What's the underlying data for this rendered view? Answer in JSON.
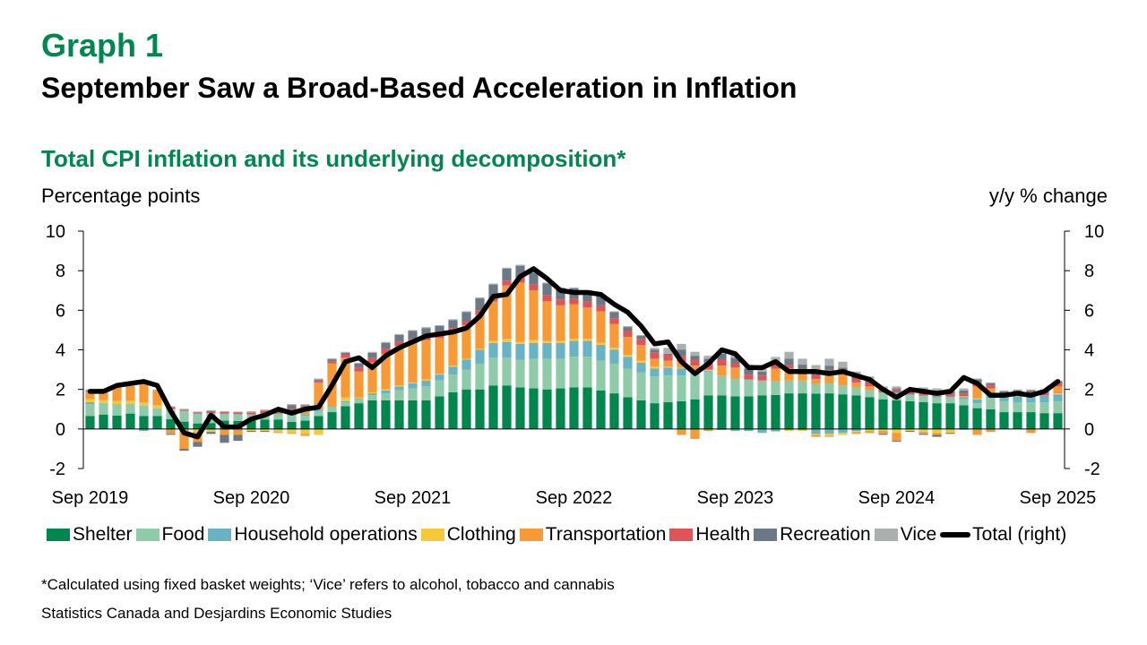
{
  "header": {
    "graph_number": "Graph 1",
    "title": "September Saw a Broad-Based Acceleration in Inflation",
    "subtitle": "Total CPI inflation and its underlying decomposition*",
    "left_axis_label": "Percentage points",
    "right_axis_label": "y/y % change"
  },
  "footer": {
    "note": "*Calculated using fixed basket weights; ‘Vice’ refers to alcohol, tobacco and cannabis",
    "source": "Statistics Canada and Desjardins Economic Studies"
  },
  "chart_data": {
    "type": "bar",
    "stacked": true,
    "title": "Total CPI inflation and its underlying decomposition*",
    "ylabel": "Percentage points",
    "y2label": "y/y % change",
    "ylim": [
      -2,
      10
    ],
    "y2lim": [
      -2,
      10
    ],
    "yticks": [
      -2,
      0,
      2,
      4,
      6,
      8,
      10
    ],
    "xtick_labels": [
      "Sep 2019",
      "Sep 2020",
      "Sep 2021",
      "Sep 2022",
      "Sep 2023",
      "Sep 2024",
      "Sep 2025"
    ],
    "xtick_indices": [
      0,
      12,
      24,
      36,
      48,
      60,
      72
    ],
    "legend_position": "bottom",
    "grid": false,
    "x_start": "Sep 2019",
    "x_end": "Sep 2025",
    "frequency": "monthly",
    "colors": {
      "Shelter": "#00874E",
      "Food": "#8FCBA9",
      "Household operations": "#69B3C6",
      "Clothing": "#F5C93A",
      "Transportation": "#F79A35",
      "Health": "#E05457",
      "Recreation": "#6B7885",
      "Vice": "#A9B0AE",
      "Total (right)": "#000000"
    },
    "series": [
      {
        "name": "Shelter",
        "values": [
          0.65,
          0.73,
          0.68,
          0.78,
          0.65,
          0.65,
          0.5,
          0.37,
          0.28,
          0.3,
          0.42,
          0.4,
          0.42,
          0.48,
          0.48,
          0.36,
          0.42,
          0.65,
          0.85,
          1.15,
          1.3,
          1.45,
          1.45,
          1.45,
          1.45,
          1.45,
          1.65,
          1.85,
          2.0,
          2.0,
          2.2,
          2.2,
          2.1,
          2.05,
          2.0,
          2.05,
          2.1,
          2.1,
          1.95,
          1.8,
          1.6,
          1.45,
          1.3,
          1.35,
          1.4,
          1.5,
          1.7,
          1.7,
          1.65,
          1.65,
          1.7,
          1.72,
          1.8,
          1.8,
          1.78,
          1.8,
          1.75,
          1.7,
          1.6,
          1.5,
          1.45,
          1.4,
          1.35,
          1.3,
          1.3,
          1.2,
          1.05,
          1.0,
          0.85,
          0.85,
          0.85,
          0.8,
          0.8
        ]
      },
      {
        "name": "Food",
        "values": [
          0.6,
          0.58,
          0.58,
          0.5,
          0.55,
          0.4,
          0.45,
          0.55,
          0.5,
          0.5,
          0.35,
          0.35,
          0.32,
          0.3,
          0.3,
          0.3,
          0.25,
          0.25,
          0.25,
          0.2,
          0.2,
          0.25,
          0.35,
          0.5,
          0.6,
          0.7,
          0.8,
          0.9,
          1.0,
          1.3,
          1.4,
          1.4,
          1.4,
          1.5,
          1.55,
          1.5,
          1.55,
          1.55,
          1.5,
          1.5,
          1.45,
          1.4,
          1.35,
          1.35,
          1.3,
          1.25,
          1.2,
          1.0,
          0.9,
          0.85,
          0.75,
          0.72,
          0.65,
          0.65,
          0.5,
          0.5,
          0.45,
          0.4,
          0.35,
          0.35,
          0.35,
          0.3,
          0.3,
          0.3,
          0.3,
          0.3,
          0.25,
          0.55,
          0.55,
          0.5,
          0.5,
          0.55,
          0.6
        ]
      },
      {
        "name": "Household operations",
        "values": [
          0.1,
          0.0,
          0.0,
          0.0,
          0.0,
          0.0,
          0.0,
          0.0,
          0.0,
          0.0,
          0.0,
          0.0,
          0.0,
          0.0,
          0.0,
          0.2,
          0.08,
          0.05,
          0.02,
          0.05,
          0.05,
          0.1,
          0.15,
          0.2,
          0.25,
          0.3,
          0.3,
          0.4,
          0.5,
          0.7,
          0.75,
          0.8,
          0.8,
          0.8,
          0.8,
          0.8,
          0.8,
          0.8,
          0.8,
          0.7,
          0.6,
          0.5,
          0.4,
          0.4,
          0.35,
          0.2,
          0.05,
          0.0,
          0.0,
          0.0,
          0.0,
          0.0,
          0.0,
          0.0,
          0.0,
          0.0,
          0.0,
          0.0,
          0.0,
          0.0,
          0.05,
          0.05,
          0.05,
          0.05,
          0.05,
          0.1,
          0.2,
          0.3,
          0.3,
          0.3,
          0.3,
          0.35,
          0.35
        ]
      },
      {
        "name": "Clothing",
        "values": [
          0.15,
          0.15,
          0.15,
          0.15,
          0.15,
          0.15,
          0.05,
          0.0,
          0.0,
          0.0,
          0.0,
          0.0,
          0.0,
          0.0,
          0.0,
          0.0,
          0.0,
          0.0,
          0.0,
          0.2,
          0.05,
          0.05,
          0.05,
          0.05,
          0.05,
          0.05,
          0.05,
          0.05,
          0.05,
          0.05,
          0.1,
          0.15,
          0.1,
          0.15,
          0.1,
          0.1,
          0.1,
          0.1,
          0.1,
          0.1,
          0.1,
          0.1,
          0.1,
          0.05,
          0.05,
          0.05,
          0.05,
          0.0,
          0.0,
          0.0,
          0.0,
          0.0,
          0.0,
          0.0,
          0.0,
          0.0,
          0.0,
          0.0,
          0.0,
          0.0,
          0.0,
          0.0,
          0.0,
          0.0,
          0.0,
          0.05,
          0.05,
          0.0,
          0.0,
          0.05,
          0.05,
          0.0,
          0.05
        ]
      },
      {
        "name": "Transportation",
        "values": [
          0.4,
          0.45,
          0.7,
          0.75,
          1.0,
          0.75,
          0.0,
          0.0,
          0.0,
          0.0,
          0.0,
          0.0,
          0.0,
          0.0,
          0.0,
          0.05,
          0.3,
          1.4,
          2.2,
          2.0,
          1.3,
          1.5,
          1.8,
          2.0,
          2.0,
          2.0,
          1.8,
          1.7,
          1.7,
          1.7,
          2.0,
          2.7,
          3.0,
          2.5,
          2.0,
          1.8,
          1.75,
          1.6,
          1.6,
          1.2,
          0.9,
          0.8,
          0.4,
          0.3,
          0.3,
          0.2,
          0.0,
          0.5,
          0.55,
          0.0,
          0.0,
          0.6,
          0.6,
          0.3,
          0.25,
          0.5,
          0.6,
          0.25,
          0.2,
          0.0,
          0.0,
          0.0,
          0.0,
          0.0,
          0.0,
          0.0,
          0.6,
          0.2,
          0.0,
          0.05,
          0.05,
          0.0,
          0.35
        ]
      },
      {
        "name": "Health",
        "values": [
          0.0,
          0.0,
          0.0,
          0.0,
          0.0,
          0.0,
          0.1,
          0.05,
          0.05,
          0.1,
          0.08,
          0.08,
          0.1,
          0.15,
          0.1,
          0.1,
          0.1,
          0.1,
          0.1,
          0.15,
          0.2,
          0.25,
          0.25,
          0.2,
          0.2,
          0.2,
          0.2,
          0.2,
          0.2,
          0.25,
          0.25,
          0.25,
          0.25,
          0.3,
          0.3,
          0.3,
          0.3,
          0.3,
          0.3,
          0.3,
          0.3,
          0.3,
          0.3,
          0.3,
          0.3,
          0.3,
          0.25,
          0.3,
          0.2,
          0.25,
          0.25,
          0.25,
          0.2,
          0.2,
          0.2,
          0.2,
          0.2,
          0.2,
          0.2,
          0.15,
          0.15,
          0.1,
          0.2,
          0.2,
          0.15,
          0.15,
          0.2,
          0.15,
          0.1,
          0.1,
          0.1,
          0.1,
          0.15
        ]
      },
      {
        "name": "Recreation",
        "values": [
          0.05,
          0.0,
          0.0,
          0.0,
          0.0,
          0.0,
          0.0,
          0.0,
          0.0,
          0.0,
          0.0,
          0.0,
          0.0,
          0.0,
          0.1,
          0.2,
          0.05,
          0.05,
          0.1,
          0.1,
          0.2,
          0.25,
          0.3,
          0.35,
          0.4,
          0.4,
          0.4,
          0.4,
          0.45,
          0.6,
          0.6,
          0.6,
          0.6,
          0.6,
          0.6,
          0.55,
          0.5,
          0.5,
          0.45,
          0.3,
          0.2,
          0.15,
          0.15,
          0.05,
          0.3,
          0.2,
          0.3,
          0.3,
          0.3,
          0.3,
          0.2,
          0.05,
          0.3,
          0.3,
          0.2,
          0.2,
          0.1,
          0.1,
          0.1,
          0.05,
          0.05,
          0.1,
          0.1,
          0.1,
          0.1,
          0.15,
          0.15,
          0.1,
          0.1,
          0.1,
          0.1,
          0.1,
          0.1
        ]
      },
      {
        "name": "Vice",
        "values": [
          0.05,
          0.05,
          0.05,
          0.05,
          0.05,
          0.05,
          0.05,
          0.05,
          0.05,
          0.05,
          0.05,
          0.05,
          0.05,
          0.05,
          0.05,
          0.05,
          0.05,
          0.05,
          0.05,
          0.05,
          0.05,
          0.05,
          0.05,
          0.05,
          0.05,
          0.05,
          0.05,
          0.05,
          0.05,
          0.05,
          0.05,
          0.05,
          0.05,
          0.05,
          0.05,
          0.05,
          0.05,
          0.05,
          0.05,
          0.05,
          0.05,
          0.05,
          0.1,
          0.3,
          0.3,
          0.2,
          0.15,
          0.1,
          0.15,
          0.2,
          0.3,
          0.3,
          0.35,
          0.3,
          0.3,
          0.35,
          0.3,
          0.25,
          0.2,
          0.1,
          0.1,
          0.1,
          0.1,
          0.1,
          0.1,
          0.1,
          0.05,
          0.05,
          0.05,
          0.05,
          0.05,
          0.05,
          0.05
        ]
      },
      {
        "name": "Shelter_neg",
        "values": []
      },
      {
        "name": "Total (right)",
        "type": "line",
        "values": [
          1.9,
          1.9,
          2.2,
          2.3,
          2.4,
          2.2,
          0.9,
          -0.2,
          -0.4,
          0.7,
          0.1,
          0.1,
          0.5,
          0.7,
          1.0,
          0.8,
          1.0,
          1.1,
          2.2,
          3.4,
          3.6,
          3.1,
          3.7,
          4.1,
          4.4,
          4.7,
          4.8,
          4.9,
          5.1,
          5.7,
          6.7,
          6.8,
          7.7,
          8.1,
          7.6,
          7.0,
          6.9,
          6.9,
          6.8,
          6.3,
          5.9,
          5.2,
          4.3,
          4.4,
          3.4,
          2.8,
          3.3,
          4.0,
          3.8,
          3.1,
          3.1,
          3.4,
          2.9,
          2.9,
          2.9,
          2.8,
          2.9,
          2.7,
          2.5,
          2.0,
          1.6,
          2.0,
          1.9,
          1.8,
          1.9,
          2.6,
          2.3,
          1.7,
          1.7,
          1.8,
          1.7,
          1.9,
          2.4
        ]
      }
    ],
    "negative_components": {
      "note": "below-zero contributions per month (pp), by component",
      "Transportation": [
        0,
        0,
        0,
        0,
        0,
        0,
        -0.25,
        -1.0,
        -0.5,
        0,
        -0.3,
        -0.3,
        0,
        0,
        -0.05,
        -0.05,
        -0.1,
        0,
        0,
        0,
        0,
        0,
        0,
        0,
        0,
        0,
        0,
        0,
        0,
        0,
        0,
        0,
        0,
        0,
        0,
        0,
        0,
        0,
        0,
        0,
        0,
        0,
        0,
        0,
        -0.3,
        -0.5,
        -0.1,
        0,
        0,
        0,
        0,
        0,
        0,
        0,
        -0.1,
        -0.05,
        0,
        -0.1,
        -0.1,
        -0.15,
        -0.4,
        0,
        -0.1,
        -0.1,
        0,
        0,
        -0.3,
        -0.15,
        0,
        0,
        -0.2,
        0,
        0
      ],
      "Clothing": [
        0,
        0,
        0,
        0,
        0,
        0,
        0,
        0,
        -0.15,
        -0.15,
        0,
        0,
        -0.1,
        -0.1,
        -0.15,
        -0.2,
        -0.25,
        -0.3,
        0,
        0,
        0,
        0,
        0,
        0,
        0,
        0,
        0,
        0,
        0,
        0,
        0,
        0,
        0,
        0,
        0,
        0,
        0,
        0,
        0,
        0,
        0,
        0,
        0,
        0,
        0,
        0,
        0,
        0,
        0,
        0,
        0,
        -0.05,
        -0.05,
        -0.05,
        -0.05,
        -0.1,
        -0.1,
        -0.05,
        -0.05,
        -0.1,
        -0.2,
        -0.1,
        -0.15,
        -0.2,
        -0.2,
        -0.05,
        0,
        0,
        0,
        0,
        0,
        0,
        0
      ],
      "Household operations": [
        0,
        0,
        0,
        0,
        -0.1,
        0,
        0,
        0,
        0,
        0,
        0,
        0,
        0,
        0,
        0,
        0,
        0,
        0,
        0,
        0,
        0,
        0,
        0,
        0,
        0,
        0,
        0,
        0,
        0,
        0,
        0,
        0,
        0,
        0,
        0,
        0,
        0,
        0,
        0,
        0,
        0,
        0,
        0,
        0,
        0,
        0,
        0,
        -0.05,
        -0.1,
        -0.1,
        -0.2,
        -0.1,
        -0.05,
        -0.05,
        -0.25,
        -0.25,
        -0.2,
        -0.1,
        -0.05,
        0,
        0,
        0,
        0,
        0,
        0,
        0,
        0,
        0,
        0,
        0,
        0,
        0,
        0
      ],
      "Recreation": [
        0,
        0,
        0,
        0,
        0,
        0,
        -0.05,
        -0.1,
        -0.25,
        -0.1,
        -0.4,
        -0.3,
        -0.05,
        -0.05,
        0,
        0,
        0,
        0,
        0,
        0,
        0,
        0,
        0,
        0,
        0,
        0,
        0,
        0,
        0,
        0,
        0,
        0,
        0,
        0,
        0,
        0,
        0,
        0,
        0,
        0,
        0,
        0,
        0,
        0,
        0,
        0,
        0,
        0,
        0,
        0,
        0,
        0,
        0,
        0,
        0,
        0,
        0,
        0,
        0,
        -0.05,
        -0.05,
        -0.05,
        -0.05,
        -0.1,
        -0.05,
        0,
        0,
        0,
        0,
        0,
        0,
        0,
        0
      ]
    }
  }
}
